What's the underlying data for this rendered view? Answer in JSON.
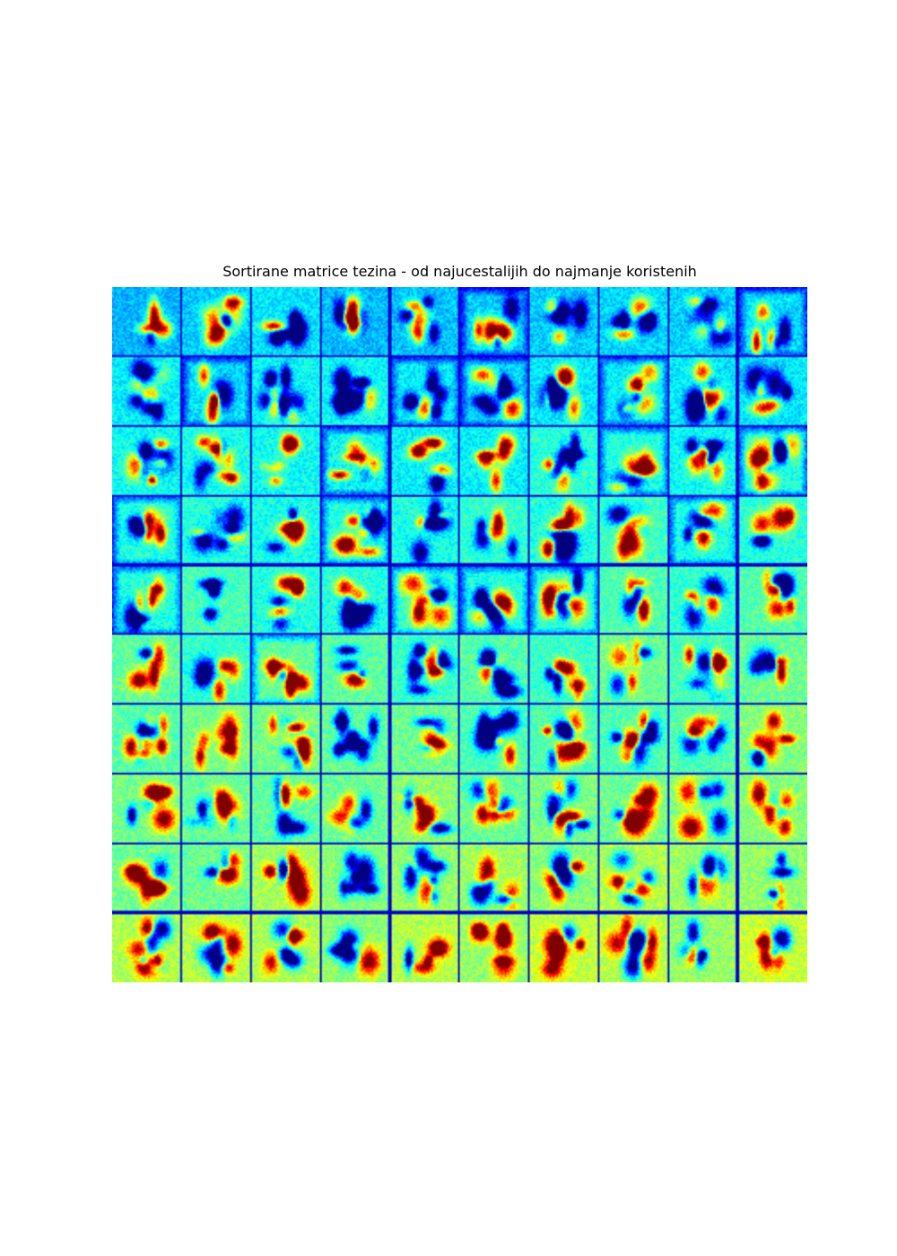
{
  "title": "Sortirane matrice tezina - od najucestalijih do najmanje koristenih",
  "grid": {
    "rows": 10,
    "cols": 10,
    "tile_pixels": 28,
    "colormap": "jet",
    "separator_color": "#0000c8"
  }
}
